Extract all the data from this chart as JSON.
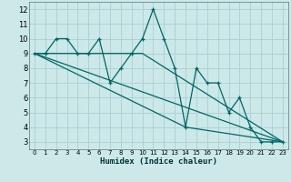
{
  "xlabel": "Humidex (Indice chaleur)",
  "bg_color": "#cce8e8",
  "grid_color": "#aacfcf",
  "line_color": "#006666",
  "xlim": [
    -0.5,
    23.5
  ],
  "ylim": [
    2.5,
    12.5
  ],
  "xticks": [
    0,
    1,
    2,
    3,
    4,
    5,
    6,
    7,
    8,
    9,
    10,
    11,
    12,
    13,
    14,
    15,
    16,
    17,
    18,
    19,
    20,
    21,
    22,
    23
  ],
  "yticks": [
    3,
    4,
    5,
    6,
    7,
    8,
    9,
    10,
    11,
    12
  ],
  "line1_x": [
    0,
    1,
    2,
    3,
    4,
    5,
    6,
    7,
    8,
    9,
    10,
    11,
    12,
    13,
    14,
    15,
    16,
    17,
    18,
    19,
    20,
    21,
    22,
    23
  ],
  "line1_y": [
    9,
    9,
    10,
    10,
    9,
    9,
    10,
    7,
    8,
    9,
    10,
    12,
    10,
    8,
    4,
    8,
    7,
    7,
    5,
    6,
    4,
    3,
    3,
    3
  ],
  "line2_x": [
    0,
    14,
    23
  ],
  "line2_y": [
    9,
    4,
    3
  ],
  "line3_x": [
    0,
    23
  ],
  "line3_y": [
    9,
    3
  ],
  "line4_x": [
    0,
    10,
    23
  ],
  "line4_y": [
    9,
    9,
    3
  ]
}
